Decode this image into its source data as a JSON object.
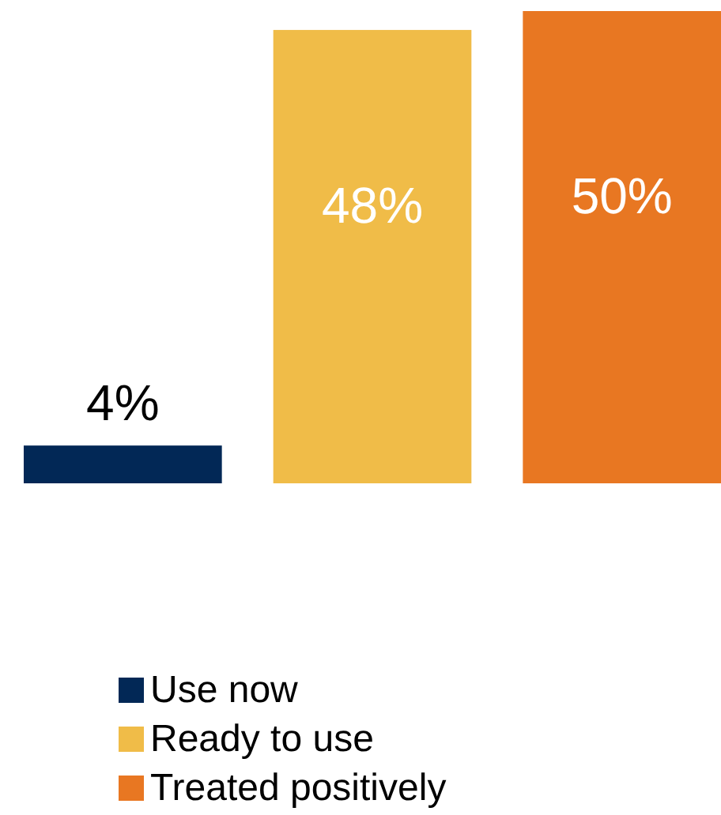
{
  "chart_data": {
    "type": "bar",
    "categories": [
      null,
      null,
      null
    ],
    "stacked": true,
    "series": [
      {
        "name": "Use now",
        "color": "#022856",
        "values": [
          4,
          null,
          null
        ],
        "value_labels": [
          "4%",
          null,
          null
        ]
      },
      {
        "name": "Ready to use",
        "color": "#f0bc48",
        "values": [
          null,
          48,
          null
        ],
        "value_labels": [
          null,
          "48%",
          null
        ]
      },
      {
        "name": "Treated positively",
        "color": "#e87722",
        "values": [
          null,
          null,
          50
        ],
        "value_labels": [
          null,
          null,
          "50%"
        ]
      }
    ],
    "legend": "bottom"
  }
}
